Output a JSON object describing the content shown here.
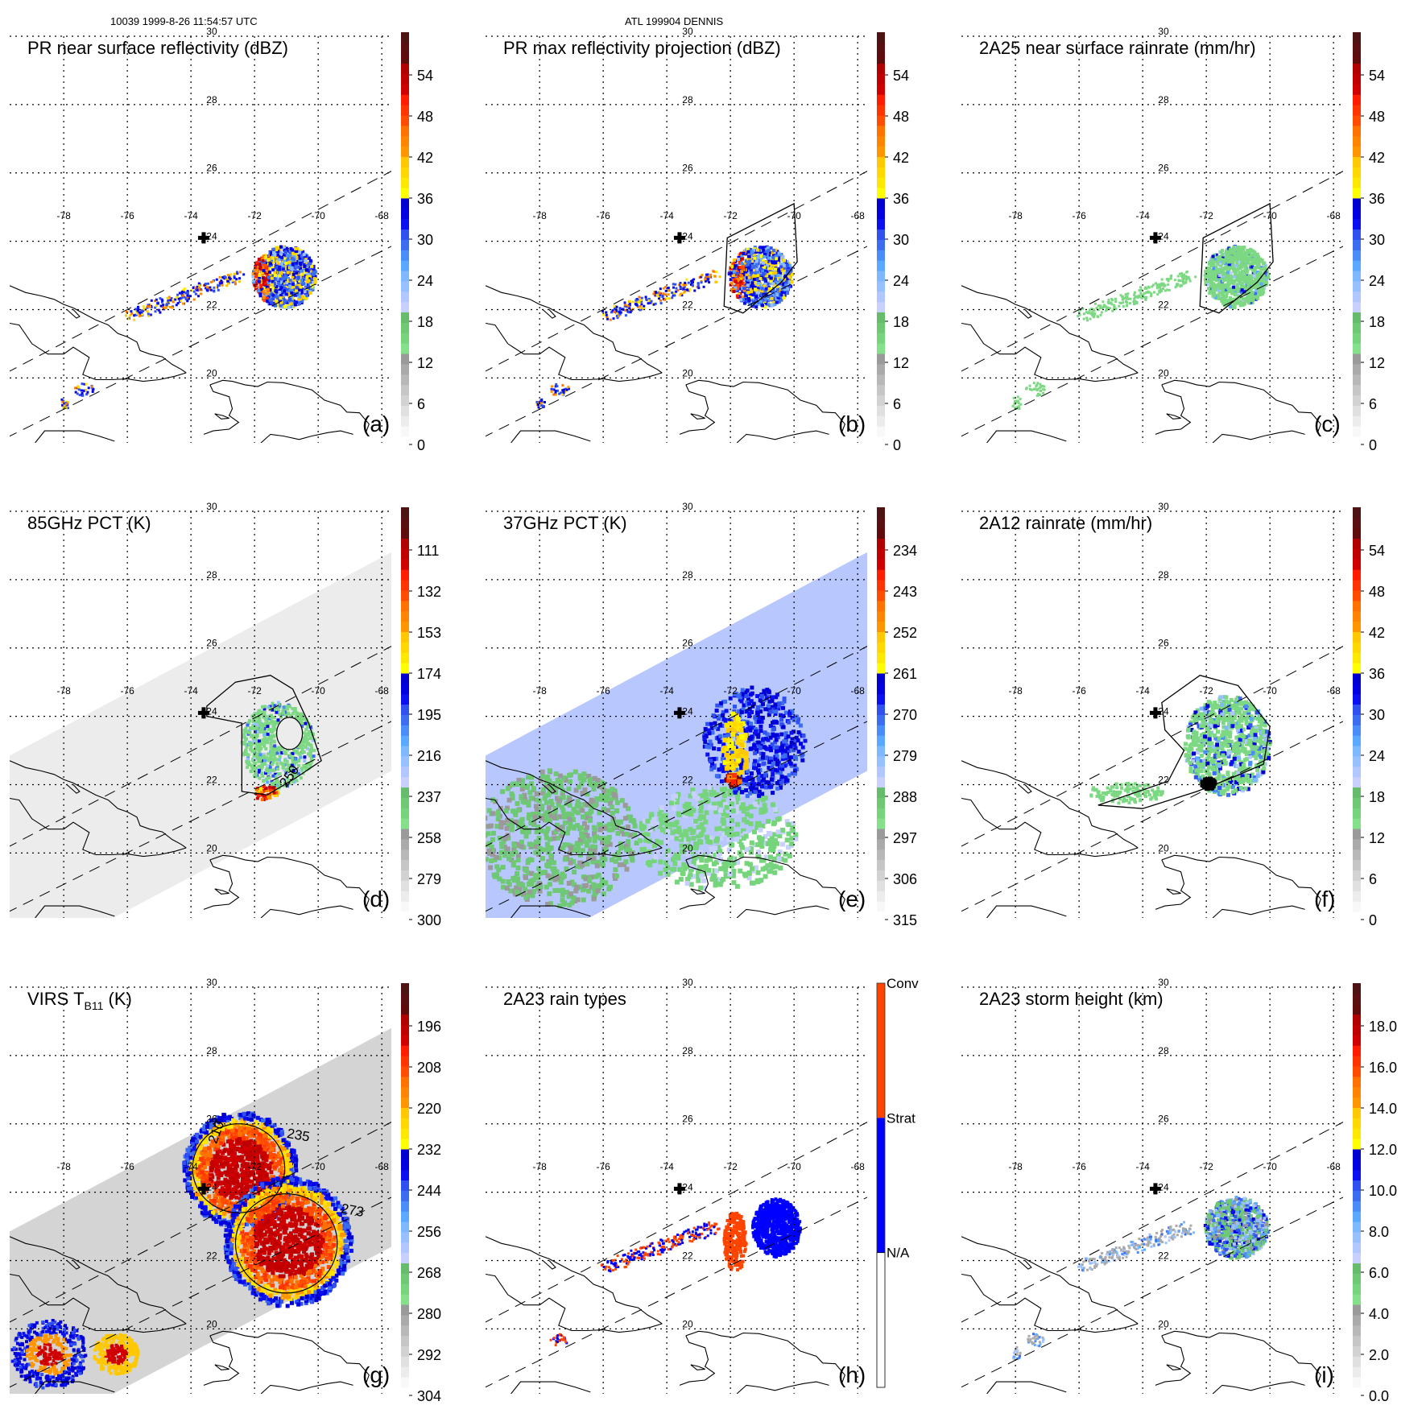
{
  "header": {
    "left": "10039 1999-8-26 11:54:57 UTC",
    "center": "ATL 199904 DENNIS"
  },
  "chart_data": {
    "type": "heatmap",
    "description": "3x3 panel of TRMM satellite swath maps over Bahamas/Hispaniola for Hurricane Dennis",
    "map": {
      "lon_ticks": [
        -78,
        -76,
        -74,
        -72,
        -70,
        -68
      ],
      "lat_ticks": [
        30,
        28,
        26,
        24,
        22,
        20
      ],
      "lon_range": [
        -79.7,
        -67.7
      ],
      "lat_range": [
        18.1,
        30
      ],
      "grid": "dotted",
      "storm_center": {
        "lon": -73.6,
        "lat": 24.1,
        "marker": "cross"
      }
    },
    "palette": [
      "#f8f8f8",
      "#ececec",
      "#e0e0e0",
      "#d2d2d2",
      "#c6c6c6",
      "#b8b8b8",
      "#aaaaaa",
      "#9a9a9a",
      "#84e08a",
      "#76d47c",
      "#6ec874",
      "#66bc6c",
      "#c8d0ff",
      "#b0c8ff",
      "#98c0ff",
      "#7eb8ff",
      "#5aa8ff",
      "#4a8cf8",
      "#3c6cf0",
      "#3050f0",
      "#0a10f0",
      "#0000e0",
      "#0000d0",
      "#ffff00",
      "#ffe800",
      "#ffd800",
      "#ffc800",
      "#ff9600",
      "#ff8400",
      "#ff7200",
      "#ff4c00",
      "#ff3400",
      "#ff1c00",
      "#d00000",
      "#c00000",
      "#b00000",
      "#600c0c",
      "#5a1010",
      "#4e1414"
    ],
    "panels": [
      {
        "id": "a",
        "title": "PR near surface reflectivity (dBZ)",
        "label": "(a)",
        "colorbar_ticks": [
          "54",
          "48",
          "42",
          "36",
          "30",
          "24",
          "18",
          "12",
          "6",
          "0"
        ],
        "colorbar_type": "continuous",
        "swath": "narrow"
      },
      {
        "id": "b",
        "title": "PR max reflectivity projection (dBZ)",
        "label": "(b)",
        "colorbar_ticks": [
          "54",
          "48",
          "42",
          "36",
          "30",
          "24",
          "18",
          "12",
          "6",
          "0"
        ],
        "colorbar_type": "continuous",
        "swath": "narrow"
      },
      {
        "id": "c",
        "title": "2A25 near surface rainrate (mm/hr)",
        "label": "(c)",
        "colorbar_ticks": [
          "54",
          "48",
          "42",
          "36",
          "30",
          "24",
          "18",
          "12",
          "6",
          "0"
        ],
        "colorbar_type": "continuous",
        "swath": "narrow"
      },
      {
        "id": "d",
        "title": "85GHz PCT (K)",
        "label": "(d)",
        "colorbar_ticks": [
          "111",
          "132",
          "153",
          "174",
          "195",
          "216",
          "237",
          "258",
          "279",
          "300"
        ],
        "colorbar_type": "continuous",
        "swath": "wide",
        "contour_labels": [
          "250"
        ]
      },
      {
        "id": "e",
        "title": "37GHz PCT (K)",
        "label": "(e)",
        "colorbar_ticks": [
          "234",
          "243",
          "252",
          "261",
          "270",
          "279",
          "288",
          "297",
          "306",
          "315"
        ],
        "colorbar_type": "continuous",
        "swath": "wide"
      },
      {
        "id": "f",
        "title": "2A12 rainrate (mm/hr)",
        "label": "(f)",
        "colorbar_ticks": [
          "54",
          "48",
          "42",
          "36",
          "30",
          "24",
          "18",
          "12",
          "6",
          "0"
        ],
        "colorbar_type": "continuous",
        "swath": "wide"
      },
      {
        "id": "g",
        "title_main": "VIRS T",
        "title_sub": "B11",
        "title_unit": " (K)",
        "label": "(g)",
        "colorbar_ticks": [
          "196",
          "208",
          "220",
          "232",
          "244",
          "256",
          "268",
          "280",
          "292",
          "304"
        ],
        "colorbar_type": "continuous",
        "swath": "wide",
        "contour_labels": [
          "210",
          "235",
          "273"
        ]
      },
      {
        "id": "h",
        "title": "2A23 rain types",
        "label": "(h)",
        "colorbar_ticks": [
          "Conv",
          "Strat",
          "N/A"
        ],
        "colorbar_type": "categorical",
        "category_colors": [
          "#ff4400",
          "#0000ff",
          "#ffffff"
        ],
        "swath": "narrow"
      },
      {
        "id": "i",
        "title": "2A23 storm height (km)",
        "label": "(i)",
        "colorbar_ticks": [
          "18.0",
          "16.0",
          "14.0",
          "12.0",
          "10.0",
          "8.0",
          "6.0",
          "4.0",
          "2.0",
          "0.0"
        ],
        "colorbar_type": "continuous",
        "swath": "narrow"
      }
    ]
  }
}
